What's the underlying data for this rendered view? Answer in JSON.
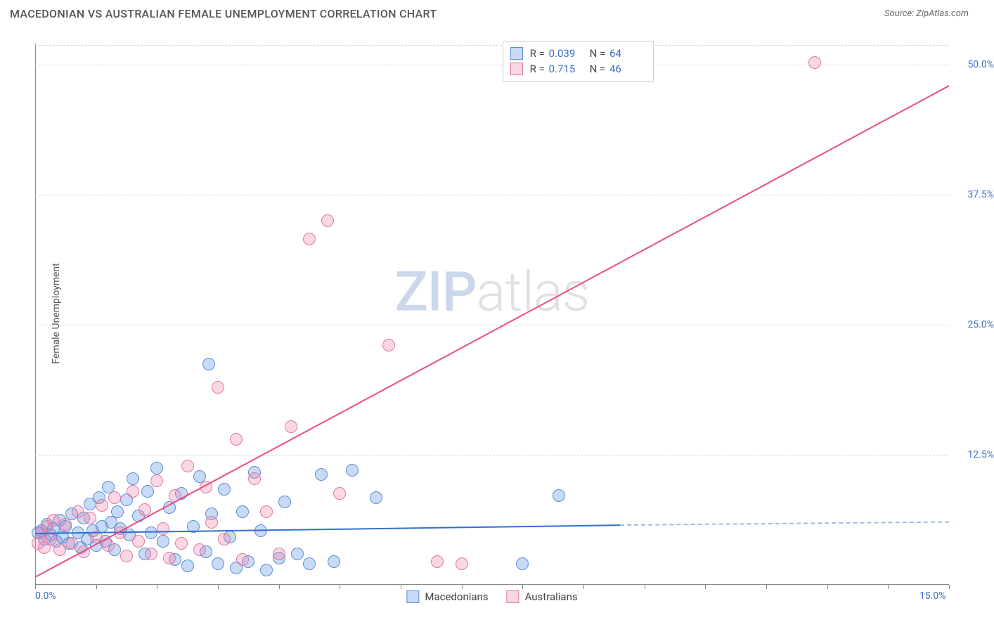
{
  "meta": {
    "title": "MACEDONIAN VS AUSTRALIAN FEMALE UNEMPLOYMENT CORRELATION CHART",
    "source": "Source: ZipAtlas.com",
    "watermark_a": "ZIP",
    "watermark_b": "atlas",
    "ylabel": "Female Unemployment"
  },
  "colors": {
    "series1_fill": "rgba(100,150,230,0.35)",
    "series1_stroke": "#5a8fd6",
    "series2_fill": "rgba(240,130,170,0.32)",
    "series2_stroke": "#e2789f",
    "trend1": "#2f6fd0",
    "trend1_dash": "#9cbbe6",
    "trend2": "#e94d82",
    "axis_text": "#3a6fc4",
    "grid": "#d5d5d5",
    "text": "#555"
  },
  "chart": {
    "type": "scatter",
    "xlim": [
      0,
      15
    ],
    "ylim": [
      0,
      52
    ],
    "x_ticks": [
      0,
      5,
      10,
      15
    ],
    "x_tick_labels": {
      "0": "0.0%",
      "15": "15.0%"
    },
    "x_minor_ticks": [
      1,
      2,
      3,
      4,
      6,
      7,
      8,
      9,
      11,
      12,
      13,
      14
    ],
    "y_ticks": [
      12.5,
      25.0,
      37.5,
      50.0
    ],
    "y_tick_labels": [
      "12.5%",
      "25.0%",
      "37.5%",
      "50.0%"
    ],
    "marker_radius": 9,
    "series": [
      {
        "name": "Macedonians",
        "color_key": "series1",
        "R": "0.039",
        "N": "64",
        "trend": {
          "x1": 0,
          "y1": 5.0,
          "x2": 9.6,
          "y2": 5.8,
          "extend_to_x": 15,
          "extend_y": 6.1
        },
        "points": [
          [
            0.05,
            5.0
          ],
          [
            0.1,
            5.2
          ],
          [
            0.15,
            4.4
          ],
          [
            0.2,
            5.8
          ],
          [
            0.25,
            4.8
          ],
          [
            0.3,
            5.4
          ],
          [
            0.35,
            4.2
          ],
          [
            0.4,
            6.2
          ],
          [
            0.45,
            4.6
          ],
          [
            0.5,
            5.6
          ],
          [
            0.55,
            4.0
          ],
          [
            0.6,
            6.8
          ],
          [
            0.7,
            5.0
          ],
          [
            0.75,
            3.6
          ],
          [
            0.8,
            6.4
          ],
          [
            0.85,
            4.4
          ],
          [
            0.9,
            7.8
          ],
          [
            0.95,
            5.2
          ],
          [
            1.0,
            3.8
          ],
          [
            1.05,
            8.4
          ],
          [
            1.1,
            5.6
          ],
          [
            1.15,
            4.2
          ],
          [
            1.2,
            9.4
          ],
          [
            1.25,
            6.0
          ],
          [
            1.3,
            3.4
          ],
          [
            1.35,
            7.0
          ],
          [
            1.4,
            5.4
          ],
          [
            1.5,
            8.2
          ],
          [
            1.55,
            4.8
          ],
          [
            1.6,
            10.2
          ],
          [
            1.7,
            6.6
          ],
          [
            1.8,
            3.0
          ],
          [
            1.85,
            9.0
          ],
          [
            1.9,
            5.0
          ],
          [
            2.0,
            11.2
          ],
          [
            2.1,
            4.2
          ],
          [
            2.2,
            7.4
          ],
          [
            2.3,
            2.4
          ],
          [
            2.4,
            8.8
          ],
          [
            2.5,
            1.8
          ],
          [
            2.6,
            5.6
          ],
          [
            2.7,
            10.4
          ],
          [
            2.8,
            3.2
          ],
          [
            2.85,
            21.2
          ],
          [
            2.9,
            6.8
          ],
          [
            3.0,
            2.0
          ],
          [
            3.1,
            9.2
          ],
          [
            3.2,
            4.6
          ],
          [
            3.3,
            1.6
          ],
          [
            3.4,
            7.0
          ],
          [
            3.5,
            2.2
          ],
          [
            3.6,
            10.8
          ],
          [
            3.7,
            5.2
          ],
          [
            3.8,
            1.4
          ],
          [
            4.0,
            2.6
          ],
          [
            4.1,
            8.0
          ],
          [
            4.3,
            3.0
          ],
          [
            4.5,
            2.0
          ],
          [
            4.7,
            10.6
          ],
          [
            4.9,
            2.2
          ],
          [
            5.2,
            11.0
          ],
          [
            5.6,
            8.4
          ],
          [
            8.0,
            2.0
          ],
          [
            8.6,
            8.6
          ]
        ]
      },
      {
        "name": "Australians",
        "color_key": "series2",
        "R": "0.715",
        "N": "46",
        "trend": {
          "x1": 0,
          "y1": 0.8,
          "x2": 15,
          "y2": 48.0
        },
        "points": [
          [
            0.05,
            4.0
          ],
          [
            0.1,
            5.0
          ],
          [
            0.15,
            3.6
          ],
          [
            0.2,
            5.6
          ],
          [
            0.25,
            4.4
          ],
          [
            0.3,
            6.2
          ],
          [
            0.4,
            3.4
          ],
          [
            0.5,
            5.8
          ],
          [
            0.6,
            4.0
          ],
          [
            0.7,
            7.0
          ],
          [
            0.8,
            3.2
          ],
          [
            0.9,
            6.4
          ],
          [
            1.0,
            4.6
          ],
          [
            1.1,
            7.6
          ],
          [
            1.2,
            3.8
          ],
          [
            1.3,
            8.4
          ],
          [
            1.4,
            5.0
          ],
          [
            1.5,
            2.8
          ],
          [
            1.6,
            9.0
          ],
          [
            1.7,
            4.2
          ],
          [
            1.8,
            7.2
          ],
          [
            1.9,
            3.0
          ],
          [
            2.0,
            10.0
          ],
          [
            2.1,
            5.4
          ],
          [
            2.2,
            2.6
          ],
          [
            2.3,
            8.6
          ],
          [
            2.4,
            4.0
          ],
          [
            2.5,
            11.4
          ],
          [
            2.7,
            3.4
          ],
          [
            2.8,
            9.4
          ],
          [
            2.9,
            6.0
          ],
          [
            3.0,
            19.0
          ],
          [
            3.1,
            4.4
          ],
          [
            3.3,
            14.0
          ],
          [
            3.4,
            2.4
          ],
          [
            3.6,
            10.2
          ],
          [
            3.8,
            7.0
          ],
          [
            4.0,
            3.0
          ],
          [
            4.2,
            15.2
          ],
          [
            4.5,
            33.2
          ],
          [
            4.8,
            35.0
          ],
          [
            5.0,
            8.8
          ],
          [
            5.8,
            23.0
          ],
          [
            6.6,
            2.2
          ],
          [
            7.0,
            2.0
          ],
          [
            12.8,
            50.2
          ]
        ]
      }
    ]
  },
  "legend_bottom": [
    {
      "label": "Macedonians",
      "color_key": "series1"
    },
    {
      "label": "Australians",
      "color_key": "series2"
    }
  ]
}
